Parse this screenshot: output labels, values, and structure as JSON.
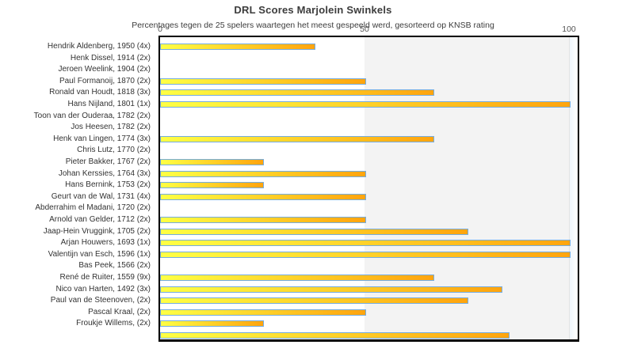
{
  "page": {
    "background": "#ffffff"
  },
  "chart_data": {
    "type": "bar",
    "orientation": "horizontal",
    "title": "DRL Scores Marjolein Swinkels",
    "subtitle": "Percentages tegen de 25 spelers waartegen het meest gespeeld werd, gesorteerd op KNSB rating",
    "xlabel": "",
    "ylabel": "",
    "xlim": [
      0,
      102
    ],
    "xticks": [
      0,
      50,
      100
    ],
    "legend_position": "none",
    "grid": "vertical band 50-100 shaded gray, band beyond 100 pale blue",
    "categories": [
      "Hendrik Aldenberg, 1950 (4x)",
      "Henk Dissel, 1914 (2x)",
      "Jeroen Weelink, 1904 (2x)",
      "Paul Formanoij, 1870 (2x)",
      "Ronald van Houdt, 1818 (3x)",
      "Hans Nijland, 1801 (1x)",
      "Toon van der Ouderaa, 1782 (2x)",
      "Jos Heesen, 1782 (2x)",
      "Henk van Lingen, 1774 (3x)",
      "Chris Lutz, 1770 (2x)",
      "Pieter Bakker, 1767 (2x)",
      "Johan Kerssies, 1764 (3x)",
      "Hans Bernink, 1753 (2x)",
      "Geurt van de Wal, 1731 (4x)",
      "Abderrahim el Madani, 1720 (2x)",
      "Arnold van Gelder, 1712 (2x)",
      "Jaap-Hein Vruggink, 1705 (2x)",
      "Arjan Houwers, 1693 (1x)",
      "Valentijn van Esch, 1596 (1x)",
      "Bas Peek, 1566 (2x)",
      "René de Ruiter, 1559 (9x)",
      "Nico van Harten, 1492 (3x)",
      "Paul van de Steenoven,  (2x)",
      "Pascal Kraal,  (2x)",
      "Froukje Willems,  (2x)",
      ""
    ],
    "values": [
      37.5,
      0,
      0,
      50,
      66.7,
      100,
      0,
      0,
      66.7,
      0,
      25,
      50,
      25,
      50,
      0,
      50,
      75,
      100,
      100,
      0,
      66.7,
      83.3,
      75,
      50,
      25,
      85
    ],
    "colors": {
      "bar_gradient_start": "#ffff44",
      "bar_gradient_end": "#ffa40e",
      "bar_border": "#74ace0",
      "band_50_100": "#f3f3f3",
      "band_over_100": "#edf5fb",
      "plot_border": "#000000",
      "text": "#3c3c3c"
    }
  }
}
